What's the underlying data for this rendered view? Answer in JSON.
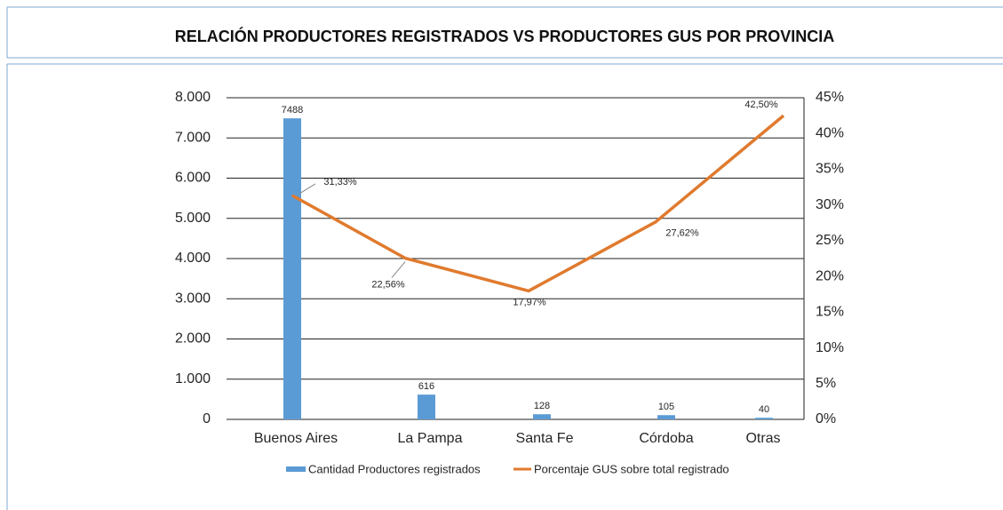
{
  "chart_data": {
    "type": "bar",
    "title": "RELACIÓN PRODUCTORES REGISTRADOS VS PRODUCTORES GUS POR PROVINCIA",
    "categories": [
      "Buenos Aires",
      "La Pampa",
      "Santa Fe",
      "Córdoba",
      "Otras"
    ],
    "series": [
      {
        "name": "Cantidad Productores registrados",
        "type": "bar",
        "color": "#5b9bd5",
        "values": [
          7488,
          616,
          128,
          105,
          40
        ]
      },
      {
        "name": "Porcentaje GUS sobre total registrado",
        "type": "line",
        "axis": "y2",
        "color": "#e07a2e",
        "values": [
          31.33,
          22.56,
          17.97,
          27.62,
          42.5
        ],
        "value_labels": [
          "31,33%",
          "22,56%",
          "17,97%",
          "27,62%",
          "42,50%"
        ]
      }
    ],
    "ylim": [
      0,
      8000
    ],
    "yticks": [
      0,
      {
        "value": 1000,
        "label": "1.000"
      },
      {
        "value": 2000,
        "label": "2.000"
      },
      {
        "value": 3000,
        "label": "3.000"
      },
      {
        "value": 4000,
        "label": "4.000"
      },
      {
        "value": 5000,
        "label": "5.000"
      },
      {
        "value": 6000,
        "label": "6.000"
      },
      {
        "value": 7000,
        "label": "7.000"
      },
      {
        "value": 8000,
        "label": "8.000"
      }
    ],
    "y2lim": [
      0,
      45
    ],
    "y2ticks": [
      {
        "value": 0,
        "label": "0%"
      },
      {
        "value": 5,
        "label": "5%"
      },
      {
        "value": 10,
        "label": "10%"
      },
      {
        "value": 15,
        "label": "15%"
      },
      {
        "value": 20,
        "label": "20%"
      },
      {
        "value": 25,
        "label": "25%"
      },
      {
        "value": 30,
        "label": "30%"
      },
      {
        "value": 35,
        "label": "35%"
      },
      {
        "value": 40,
        "label": "40%"
      },
      {
        "value": 45,
        "label": "45%"
      }
    ],
    "grid": true,
    "legend": "bottom"
  }
}
